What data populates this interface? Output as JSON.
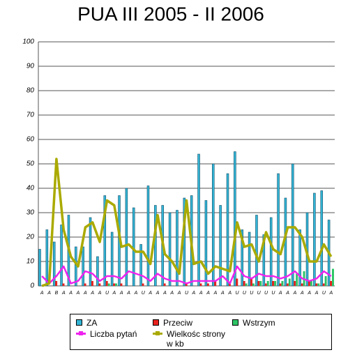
{
  "chart_data": {
    "type": "bar",
    "title": "PUA III 2005 - II 2006",
    "categories": [
      "A",
      "A",
      "B",
      "A",
      "A",
      "A",
      "A",
      "A",
      "A",
      "U",
      "A",
      "A",
      "A",
      "A",
      "U",
      "A",
      "A",
      "A",
      "A",
      "A",
      "U",
      "A",
      "A",
      "A",
      "A",
      "A",
      "A",
      "U",
      "U",
      "U",
      "U",
      "U",
      "U",
      "A",
      "A",
      "A",
      "A",
      "A",
      "A",
      "U",
      "A"
    ],
    "series": [
      {
        "name": "ZA",
        "color": "#33b5d5",
        "kind": "bar",
        "values": [
          15,
          23,
          18,
          25,
          29,
          16,
          16,
          28,
          12,
          37,
          22,
          37,
          40,
          32,
          17,
          41,
          33,
          33,
          30,
          31,
          36,
          37,
          54,
          35,
          50,
          33,
          46,
          55,
          23,
          22,
          29,
          21,
          28,
          46,
          36,
          50,
          23,
          30,
          38,
          39,
          27
        ]
      },
      {
        "name": "Przeciw",
        "color": "#e8231f",
        "kind": "bar",
        "values": [
          0,
          0,
          2,
          1,
          0,
          0,
          1,
          2,
          1,
          2,
          1,
          1,
          0,
          0,
          1,
          0,
          0,
          1,
          0,
          0,
          1,
          0,
          1,
          1,
          2,
          0,
          1,
          3,
          2,
          3,
          2,
          1,
          2,
          1,
          1,
          2,
          1,
          2,
          1,
          1,
          2
        ]
      },
      {
        "name": "Wstrzym",
        "color": "#2ec466",
        "kind": "bar",
        "values": [
          0,
          0,
          0,
          0,
          0,
          0,
          0,
          0,
          0,
          1,
          1,
          0,
          0,
          0,
          0,
          0,
          0,
          0,
          0,
          0,
          0,
          0,
          0,
          0,
          0,
          0,
          0,
          0,
          1,
          1,
          2,
          2,
          2,
          2,
          3,
          5,
          6,
          2,
          1,
          4,
          7
        ]
      },
      {
        "name": "Liczba pytań",
        "color": "#ee22ee",
        "kind": "line",
        "values": [
          4,
          1,
          4,
          8,
          1,
          2,
          6,
          5,
          2,
          4,
          4,
          3,
          6,
          5,
          4,
          2,
          5,
          3,
          2,
          2,
          1,
          2,
          2,
          2,
          2,
          4,
          1,
          8,
          4,
          3,
          5,
          4,
          4,
          3,
          4,
          6,
          3,
          2,
          3,
          6,
          4
        ]
      },
      {
        "name": "Wielkośc strony w kb",
        "color": "#aaaa00",
        "kind": "line",
        "values": [
          0,
          1,
          52,
          23,
          12,
          8,
          24,
          26,
          18,
          35,
          33,
          16,
          17,
          14,
          14,
          9,
          29,
          13,
          10,
          5,
          35,
          9,
          10,
          5,
          8,
          7,
          6,
          26,
          16,
          17,
          10,
          22,
          15,
          13,
          24,
          24,
          20,
          10,
          10,
          17,
          12
        ]
      }
    ],
    "ylim": [
      0,
      100
    ],
    "yticks": [
      0,
      10,
      20,
      30,
      40,
      50,
      60,
      70,
      80,
      90,
      100
    ],
    "grid": true
  }
}
